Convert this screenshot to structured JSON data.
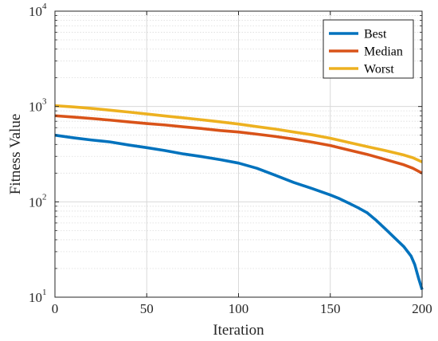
{
  "chart_data": {
    "type": "line",
    "title": "",
    "xlabel": "Iteration",
    "ylabel": "Fitness Value",
    "xlim": [
      0,
      200
    ],
    "ylim": [
      10,
      10000
    ],
    "yscale": "log",
    "grid": true,
    "legend_position": "top-right",
    "x_ticks": [
      0,
      50,
      100,
      150,
      200
    ],
    "y_ticks": [
      {
        "base": "10",
        "exp": "1",
        "value": 10
      },
      {
        "base": "10",
        "exp": "2",
        "value": 100
      },
      {
        "base": "10",
        "exp": "3",
        "value": 1000
      },
      {
        "base": "10",
        "exp": "4",
        "value": 10000
      }
    ],
    "series": [
      {
        "name": "Best",
        "color": "#0072BD",
        "x": [
          0,
          10,
          20,
          30,
          40,
          50,
          60,
          70,
          80,
          90,
          100,
          110,
          120,
          130,
          140,
          150,
          155,
          160,
          165,
          170,
          175,
          180,
          185,
          190,
          194,
          196,
          198,
          200
        ],
        "y": [
          500,
          470,
          445,
          425,
          395,
          370,
          345,
          318,
          298,
          277,
          255,
          225,
          190,
          160,
          138,
          118,
          108,
          97,
          87,
          77,
          64,
          52,
          42,
          34,
          27,
          22,
          16,
          12
        ]
      },
      {
        "name": "Median",
        "color": "#D95319",
        "x": [
          0,
          10,
          20,
          30,
          40,
          50,
          60,
          70,
          80,
          90,
          100,
          110,
          120,
          130,
          140,
          150,
          160,
          170,
          180,
          190,
          195,
          200
        ],
        "y": [
          800,
          775,
          748,
          720,
          690,
          663,
          640,
          612,
          587,
          560,
          540,
          513,
          485,
          455,
          423,
          390,
          350,
          315,
          278,
          245,
          225,
          200
        ]
      },
      {
        "name": "Worst",
        "color": "#EDB120",
        "x": [
          0,
          10,
          20,
          30,
          40,
          50,
          60,
          70,
          80,
          90,
          100,
          110,
          120,
          130,
          140,
          150,
          160,
          170,
          180,
          190,
          195,
          200
        ],
        "y": [
          1020,
          990,
          955,
          915,
          875,
          835,
          795,
          760,
          725,
          690,
          655,
          615,
          580,
          540,
          505,
          465,
          420,
          380,
          345,
          310,
          290,
          262
        ]
      }
    ]
  }
}
